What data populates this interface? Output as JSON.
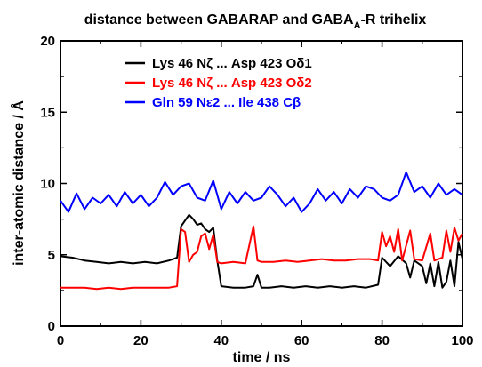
{
  "chart_data": {
    "type": "line",
    "title": {
      "pre": "distance between GABARAP and GABA",
      "sub": "A",
      "post": "-R trihelix"
    },
    "xlabel": "time / ns",
    "ylabel": "inter-atomic distance / Å",
    "xlim": [
      0,
      100
    ],
    "ylim": [
      0,
      20
    ],
    "xticks": [
      "0",
      "20",
      "40",
      "60",
      "80",
      "100"
    ],
    "yticks": [
      "0",
      "5",
      "10",
      "15",
      "20"
    ],
    "grid": false,
    "legend_position": "top-center",
    "series": [
      {
        "name": "Lys 46 Nζ ... Asp 423 Oδ1",
        "color": "#000000",
        "points": [
          [
            0,
            4.9
          ],
          [
            3,
            4.8
          ],
          [
            6,
            4.6
          ],
          [
            9,
            4.5
          ],
          [
            12,
            4.4
          ],
          [
            15,
            4.5
          ],
          [
            18,
            4.4
          ],
          [
            21,
            4.5
          ],
          [
            24,
            4.4
          ],
          [
            27,
            4.6
          ],
          [
            29,
            4.8
          ],
          [
            30,
            7.0
          ],
          [
            31,
            7.4
          ],
          [
            32,
            7.8
          ],
          [
            33,
            7.5
          ],
          [
            34,
            7.1
          ],
          [
            35,
            7.2
          ],
          [
            36,
            6.8
          ],
          [
            37,
            6.6
          ],
          [
            38,
            6.9
          ],
          [
            39,
            4.6
          ],
          [
            40,
            2.8
          ],
          [
            43,
            2.7
          ],
          [
            46,
            2.7
          ],
          [
            48,
            2.8
          ],
          [
            49,
            3.6
          ],
          [
            50,
            2.7
          ],
          [
            52,
            2.7
          ],
          [
            55,
            2.8
          ],
          [
            58,
            2.7
          ],
          [
            61,
            2.8
          ],
          [
            64,
            2.7
          ],
          [
            67,
            2.8
          ],
          [
            70,
            2.7
          ],
          [
            73,
            2.8
          ],
          [
            76,
            2.7
          ],
          [
            79,
            2.9
          ],
          [
            80,
            4.8
          ],
          [
            82,
            4.2
          ],
          [
            84,
            4.9
          ],
          [
            86,
            4.4
          ],
          [
            87,
            3.4
          ],
          [
            88,
            4.6
          ],
          [
            90,
            4.2
          ],
          [
            91,
            3.0
          ],
          [
            92,
            4.4
          ],
          [
            93,
            2.8
          ],
          [
            94,
            4.5
          ],
          [
            95,
            2.7
          ],
          [
            96,
            3.1
          ],
          [
            97,
            4.6
          ],
          [
            98,
            2.8
          ],
          [
            99,
            5.9
          ],
          [
            100,
            4.7
          ]
        ]
      },
      {
        "name": "Lys 46 Nζ ... Asp 423 Oδ2",
        "color": "#ff0000",
        "points": [
          [
            0,
            2.7
          ],
          [
            3,
            2.7
          ],
          [
            6,
            2.7
          ],
          [
            9,
            2.6
          ],
          [
            12,
            2.7
          ],
          [
            15,
            2.6
          ],
          [
            18,
            2.7
          ],
          [
            21,
            2.7
          ],
          [
            24,
            2.7
          ],
          [
            27,
            2.7
          ],
          [
            29,
            2.8
          ],
          [
            30,
            6.8
          ],
          [
            31,
            6.6
          ],
          [
            32,
            4.5
          ],
          [
            33,
            5.0
          ],
          [
            34,
            5.2
          ],
          [
            35,
            6.3
          ],
          [
            36,
            6.5
          ],
          [
            37,
            5.4
          ],
          [
            38,
            6.4
          ],
          [
            39,
            4.5
          ],
          [
            40,
            4.4
          ],
          [
            43,
            4.5
          ],
          [
            46,
            4.4
          ],
          [
            48,
            7.0
          ],
          [
            49,
            4.6
          ],
          [
            50,
            4.5
          ],
          [
            53,
            4.5
          ],
          [
            56,
            4.6
          ],
          [
            59,
            4.5
          ],
          [
            62,
            4.6
          ],
          [
            65,
            4.7
          ],
          [
            68,
            4.6
          ],
          [
            71,
            4.6
          ],
          [
            74,
            4.7
          ],
          [
            77,
            4.7
          ],
          [
            79,
            4.6
          ],
          [
            80,
            6.6
          ],
          [
            81,
            5.6
          ],
          [
            82,
            6.3
          ],
          [
            83,
            5.2
          ],
          [
            84,
            6.8
          ],
          [
            85,
            4.6
          ],
          [
            87,
            6.7
          ],
          [
            88,
            4.7
          ],
          [
            90,
            4.6
          ],
          [
            92,
            6.5
          ],
          [
            93,
            4.6
          ],
          [
            95,
            4.8
          ],
          [
            96,
            6.7
          ],
          [
            97,
            5.2
          ],
          [
            98,
            6.9
          ],
          [
            99,
            6.0
          ],
          [
            100,
            6.5
          ]
        ]
      },
      {
        "name": "Gln 59 Nε2 ... Ile 438 Cβ",
        "color": "#0000ff",
        "points": [
          [
            0,
            8.8
          ],
          [
            2,
            8.0
          ],
          [
            4,
            9.3
          ],
          [
            6,
            8.2
          ],
          [
            8,
            9.0
          ],
          [
            10,
            8.6
          ],
          [
            12,
            9.2
          ],
          [
            14,
            8.4
          ],
          [
            16,
            9.4
          ],
          [
            18,
            8.6
          ],
          [
            20,
            9.2
          ],
          [
            22,
            8.4
          ],
          [
            24,
            9.0
          ],
          [
            26,
            10.1
          ],
          [
            28,
            9.2
          ],
          [
            30,
            9.8
          ],
          [
            32,
            10.0
          ],
          [
            34,
            9.0
          ],
          [
            36,
            8.8
          ],
          [
            38,
            10.2
          ],
          [
            40,
            8.2
          ],
          [
            42,
            9.4
          ],
          [
            44,
            8.6
          ],
          [
            46,
            9.4
          ],
          [
            48,
            8.8
          ],
          [
            50,
            9.0
          ],
          [
            52,
            9.8
          ],
          [
            54,
            9.2
          ],
          [
            56,
            8.4
          ],
          [
            58,
            9.0
          ],
          [
            60,
            8.0
          ],
          [
            62,
            8.6
          ],
          [
            64,
            9.6
          ],
          [
            66,
            8.8
          ],
          [
            68,
            9.4
          ],
          [
            70,
            8.6
          ],
          [
            72,
            9.6
          ],
          [
            74,
            9.0
          ],
          [
            76,
            9.8
          ],
          [
            78,
            9.6
          ],
          [
            80,
            9.0
          ],
          [
            82,
            8.8
          ],
          [
            84,
            9.2
          ],
          [
            86,
            10.8
          ],
          [
            88,
            9.4
          ],
          [
            90,
            9.8
          ],
          [
            92,
            9.0
          ],
          [
            94,
            10.0
          ],
          [
            96,
            9.2
          ],
          [
            98,
            9.6
          ],
          [
            100,
            9.2
          ]
        ]
      }
    ]
  }
}
